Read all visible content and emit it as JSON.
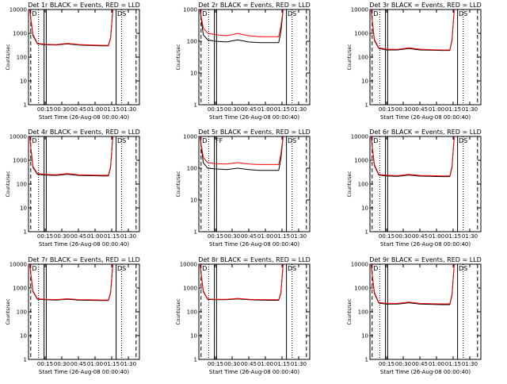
{
  "colors": {
    "events": "#000000",
    "lld": "#ff0000",
    "axis": "#000000"
  },
  "chart_data": [
    {
      "type": "line",
      "title": "Det 1r BLACK = Events, RED = LLD",
      "xlabel": "Start Time (26-Aug-08 00:00:40)",
      "ylabel": "Counts/sec",
      "yscale": "log",
      "ylim": [
        1,
        10000
      ],
      "xlim": [
        "00:00",
        "01:40"
      ],
      "y_ticks": [
        "1",
        "10",
        "100",
        "1000",
        "10000"
      ],
      "x_ticks": [
        "00:15",
        "00:30",
        "00:45",
        "01:00",
        "01:15",
        "01:30"
      ],
      "markers": [
        "D",
        "DS"
      ],
      "x": [
        "00:01",
        "00:04",
        "00:08",
        "00:15",
        "00:25",
        "00:35",
        "00:45",
        "00:55",
        "01:05",
        "01:12",
        "01:14",
        "01:16"
      ],
      "series": [
        {
          "name": "Events",
          "values": [
            10000,
            800,
            360,
            330,
            320,
            360,
            320,
            310,
            300,
            300,
            600,
            10000
          ]
        },
        {
          "name": "LLD",
          "values": [
            10000,
            900,
            380,
            345,
            335,
            380,
            340,
            325,
            315,
            315,
            650,
            10000
          ]
        }
      ]
    },
    {
      "type": "line",
      "title": "Det 2r BLACK = Events, RED = LLD",
      "xlabel": "Start Time (26-Aug-08 00:00:40)",
      "ylabel": "Counts/sec",
      "yscale": "log",
      "ylim": [
        1,
        1000
      ],
      "xlim": [
        "00:00",
        "01:40"
      ],
      "y_ticks": [
        "1",
        "10",
        "100",
        "1000"
      ],
      "x_ticks": [
        "00:15",
        "00:30",
        "00:45",
        "01:00",
        "01:15",
        "01:30"
      ],
      "markers": [
        "D",
        "DS"
      ],
      "x": [
        "00:01",
        "00:04",
        "00:08",
        "00:15",
        "00:25",
        "00:35",
        "00:45",
        "00:55",
        "01:05",
        "01:12",
        "01:14",
        "01:16"
      ],
      "series": [
        {
          "name": "Events",
          "values": [
            1000,
            160,
            110,
            100,
            95,
            110,
            95,
            90,
            90,
            90,
            200,
            1000
          ]
        },
        {
          "name": "LLD",
          "values": [
            1000,
            260,
            180,
            160,
            150,
            175,
            150,
            140,
            140,
            140,
            300,
            1000
          ]
        }
      ]
    },
    {
      "type": "line",
      "title": "Det 3r BLACK = Events, RED = LLD",
      "xlabel": "Start Time (26-Aug-08 00:00:40)",
      "ylabel": "Counts/sec",
      "yscale": "log",
      "ylim": [
        1,
        10000
      ],
      "xlim": [
        "00:00",
        "01:40"
      ],
      "y_ticks": [
        "1",
        "10",
        "100",
        "1000",
        "10000"
      ],
      "x_ticks": [
        "00:15",
        "00:30",
        "00:45",
        "01:00",
        "01:15",
        "01:30"
      ],
      "markers": [
        "D",
        "DS"
      ],
      "x": [
        "00:01",
        "00:04",
        "00:08",
        "00:15",
        "00:25",
        "00:35",
        "00:45",
        "00:55",
        "01:05",
        "01:12",
        "01:14",
        "01:16"
      ],
      "series": [
        {
          "name": "Events",
          "values": [
            10000,
            500,
            230,
            200,
            200,
            230,
            200,
            195,
            190,
            190,
            500,
            10000
          ]
        },
        {
          "name": "LLD",
          "values": [
            10000,
            550,
            245,
            215,
            210,
            245,
            215,
            205,
            200,
            200,
            550,
            10000
          ]
        }
      ]
    },
    {
      "type": "line",
      "title": "Det 4r BLACK = Events, RED = LLD",
      "xlabel": "Start Time (26-Aug-08 00:00:40)",
      "ylabel": "Counts/sec",
      "yscale": "log",
      "ylim": [
        1,
        10000
      ],
      "xlim": [
        "00:00",
        "01:40"
      ],
      "y_ticks": [
        "1",
        "10",
        "100",
        "1000",
        "10000"
      ],
      "x_ticks": [
        "00:15",
        "00:30",
        "00:45",
        "01:00",
        "01:15",
        "01:30"
      ],
      "markers": [
        "D",
        "DS"
      ],
      "x": [
        "00:01",
        "00:04",
        "00:08",
        "00:15",
        "00:25",
        "00:35",
        "00:45",
        "00:55",
        "01:05",
        "01:12",
        "01:14",
        "01:16"
      ],
      "series": [
        {
          "name": "Events",
          "values": [
            10000,
            500,
            260,
            240,
            230,
            260,
            230,
            225,
            220,
            220,
            500,
            10000
          ]
        },
        {
          "name": "LLD",
          "values": [
            10000,
            550,
            275,
            255,
            245,
            275,
            245,
            240,
            235,
            235,
            550,
            10000
          ]
        }
      ]
    },
    {
      "type": "line",
      "title": "Det 5r BLACK = Events, RED = LLD",
      "xlabel": "Start Time (26-Aug-08 00:00:40)",
      "ylabel": "Counts/sec",
      "yscale": "log",
      "ylim": [
        1,
        1000
      ],
      "xlim": [
        "00:00",
        "01:40"
      ],
      "y_ticks": [
        "1",
        "10",
        "100",
        "1000"
      ],
      "x_ticks": [
        "00:15",
        "00:30",
        "00:45",
        "01:00",
        "01:15",
        "01:30"
      ],
      "markers": [
        "D",
        "FF",
        "DS"
      ],
      "x": [
        "00:01",
        "00:04",
        "00:08",
        "00:15",
        "00:25",
        "00:35",
        "00:45",
        "00:55",
        "01:05",
        "01:12",
        "01:14",
        "01:16"
      ],
      "series": [
        {
          "name": "Events",
          "values": [
            1000,
            150,
            100,
            95,
            90,
            100,
            90,
            85,
            85,
            85,
            200,
            1000
          ]
        },
        {
          "name": "LLD",
          "values": [
            1000,
            220,
            150,
            140,
            135,
            150,
            135,
            130,
            130,
            130,
            280,
            1000
          ]
        }
      ]
    },
    {
      "type": "line",
      "title": "Det 6r BLACK = Events, RED = LLD",
      "xlabel": "Start Time (26-Aug-08 00:00:40)",
      "ylabel": "Counts/sec",
      "yscale": "log",
      "ylim": [
        1,
        10000
      ],
      "xlim": [
        "00:00",
        "01:40"
      ],
      "y_ticks": [
        "1",
        "10",
        "100",
        "1000",
        "10000"
      ],
      "x_ticks": [
        "00:15",
        "00:30",
        "00:45",
        "01:00",
        "01:15",
        "01:30"
      ],
      "markers": [
        "D",
        "DS"
      ],
      "x": [
        "00:01",
        "00:04",
        "00:08",
        "00:15",
        "00:25",
        "00:35",
        "00:45",
        "00:55",
        "01:05",
        "01:12",
        "01:14",
        "01:16"
      ],
      "series": [
        {
          "name": "Events",
          "values": [
            10000,
            600,
            240,
            220,
            210,
            240,
            215,
            210,
            205,
            205,
            500,
            10000
          ]
        },
        {
          "name": "LLD",
          "values": [
            10000,
            650,
            255,
            235,
            225,
            255,
            230,
            225,
            220,
            220,
            550,
            10000
          ]
        }
      ]
    },
    {
      "type": "line",
      "title": "Det 7r BLACK = Events, RED = LLD",
      "xlabel": "Start Time (26-Aug-08 00:00:40)",
      "ylabel": "Counts/sec",
      "yscale": "log",
      "ylim": [
        1,
        10000
      ],
      "xlim": [
        "00:00",
        "01:40"
      ],
      "y_ticks": [
        "1",
        "10",
        "100",
        "1000",
        "10000"
      ],
      "x_ticks": [
        "00:15",
        "00:30",
        "00:45",
        "01:00",
        "01:15",
        "01:30"
      ],
      "markers": [
        "D",
        "DS"
      ],
      "x": [
        "00:01",
        "00:04",
        "00:08",
        "00:15",
        "00:25",
        "00:35",
        "00:45",
        "00:55",
        "01:05",
        "01:12",
        "01:14",
        "01:16"
      ],
      "series": [
        {
          "name": "Events",
          "values": [
            10000,
            700,
            340,
            320,
            310,
            340,
            310,
            305,
            300,
            300,
            600,
            10000
          ]
        },
        {
          "name": "LLD",
          "values": [
            10000,
            750,
            355,
            335,
            325,
            355,
            325,
            320,
            315,
            315,
            650,
            10000
          ]
        }
      ]
    },
    {
      "type": "line",
      "title": "Det 8r BLACK = Events, RED = LLD",
      "xlabel": "Start Time (26-Aug-08 00:00:40)",
      "ylabel": "Counts/sec",
      "yscale": "log",
      "ylim": [
        1,
        10000
      ],
      "xlim": [
        "00:00",
        "01:40"
      ],
      "y_ticks": [
        "1",
        "10",
        "100",
        "1000",
        "10000"
      ],
      "x_ticks": [
        "00:15",
        "00:30",
        "00:45",
        "01:00",
        "01:15",
        "01:30"
      ],
      "markers": [
        "D",
        "DS"
      ],
      "x": [
        "00:01",
        "00:04",
        "00:08",
        "00:15",
        "00:25",
        "00:35",
        "00:45",
        "00:55",
        "01:05",
        "01:12",
        "01:14",
        "01:16"
      ],
      "series": [
        {
          "name": "Events",
          "values": [
            10000,
            700,
            330,
            320,
            320,
            350,
            320,
            310,
            305,
            305,
            600,
            10000
          ]
        },
        {
          "name": "LLD",
          "values": [
            10000,
            750,
            345,
            335,
            335,
            365,
            335,
            325,
            320,
            320,
            650,
            10000
          ]
        }
      ]
    },
    {
      "type": "line",
      "title": "Det 9r BLACK = Events, RED = LLD",
      "xlabel": "Start Time (26-Aug-08 00:00:40)",
      "ylabel": "Counts/sec",
      "yscale": "log",
      "ylim": [
        1,
        10000
      ],
      "xlim": [
        "00:00",
        "01:40"
      ],
      "y_ticks": [
        "1",
        "10",
        "100",
        "1000",
        "10000"
      ],
      "x_ticks": [
        "00:15",
        "00:30",
        "00:45",
        "01:00",
        "01:15",
        "01:30"
      ],
      "markers": [
        "D",
        "DS"
      ],
      "x": [
        "00:01",
        "00:04",
        "00:08",
        "00:15",
        "00:25",
        "00:35",
        "00:45",
        "00:55",
        "01:05",
        "01:12",
        "01:14",
        "01:16"
      ],
      "series": [
        {
          "name": "Events",
          "values": [
            10000,
            600,
            230,
            210,
            210,
            240,
            210,
            205,
            200,
            200,
            500,
            10000
          ]
        },
        {
          "name": "LLD",
          "values": [
            10000,
            650,
            245,
            225,
            225,
            255,
            225,
            220,
            215,
            215,
            550,
            10000
          ]
        }
      ]
    }
  ]
}
